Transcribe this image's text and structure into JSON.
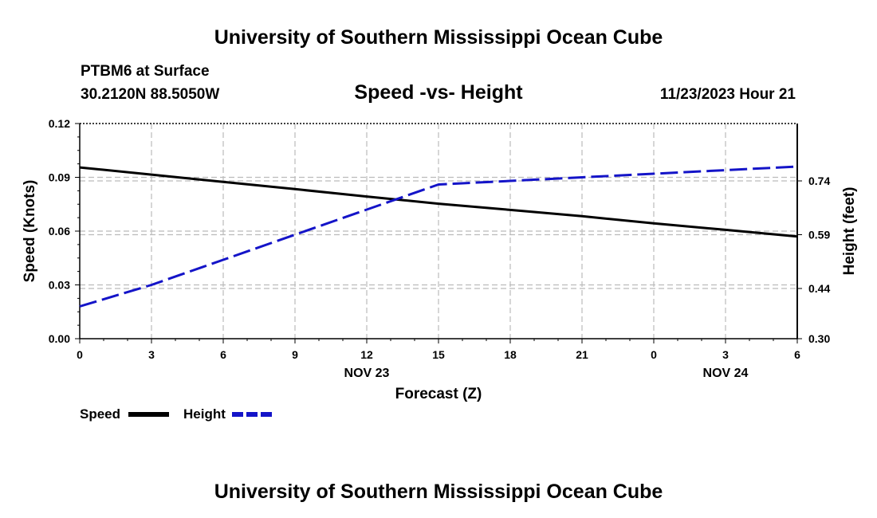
{
  "header": {
    "title": "University of Southern Mississippi Ocean Cube",
    "station": "PTBM6 at Surface",
    "location": "30.2120N  88.5050W",
    "chart_title": "Speed -vs- Height",
    "datetime": "11/23/2023 Hour 21"
  },
  "footer": {
    "title": "University of Southern Mississippi Ocean Cube"
  },
  "colors": {
    "speed": "#000000",
    "height": "#1414c8",
    "grid": "#bbbbbb"
  },
  "chart_data": {
    "type": "line",
    "title": "Speed -vs- Height",
    "xlabel": "Forecast (Z)",
    "ylabel": "Speed (Knots)",
    "ylabel_right": "Height (feet)",
    "x": [
      0,
      3,
      6,
      9,
      12,
      15,
      18,
      21,
      24,
      27,
      30
    ],
    "xlim": [
      0,
      30
    ],
    "x_tick_labels": [
      "0",
      "3",
      "6",
      "9",
      "12",
      "15",
      "18",
      "21",
      "0",
      "3",
      "6"
    ],
    "x_date_labels": [
      {
        "x": 12,
        "label": "NOV 23"
      },
      {
        "x": 27,
        "label": "NOV 24"
      }
    ],
    "ylim": [
      0,
      0.12
    ],
    "y_ticks": [
      "0.00",
      "0.03",
      "0.06",
      "0.09",
      "0.12"
    ],
    "ylim_right": [
      0.3,
      0.9
    ],
    "y_ticks_right": [
      "0.30",
      "0.44",
      "0.59",
      "0.74"
    ],
    "grid": true,
    "legend_position": "bottom-left",
    "series": [
      {
        "name": "Speed",
        "axis": "left",
        "style": "solid",
        "x": [
          0,
          3,
          6,
          9,
          12,
          15,
          18,
          21,
          24,
          27,
          30
        ],
        "values": [
          0.0955,
          0.0915,
          0.0874,
          0.0834,
          0.0793,
          0.0753,
          0.0718,
          0.0683,
          0.0643,
          0.0607,
          0.057
        ]
      },
      {
        "name": "Height",
        "axis": "right",
        "style": "dashed",
        "x": [
          0,
          3,
          6,
          9,
          12,
          15,
          18,
          21,
          24,
          27,
          30
        ],
        "values": [
          0.39,
          0.45,
          0.52,
          0.59,
          0.66,
          0.73,
          0.74,
          0.75,
          0.76,
          0.77,
          0.78
        ]
      }
    ]
  }
}
